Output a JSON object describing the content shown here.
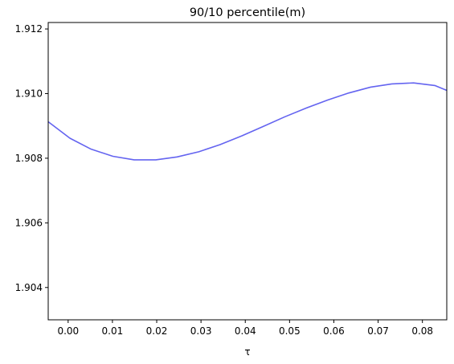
{
  "chart_data": {
    "type": "line",
    "title": "90/10 percentile(m)",
    "xlabel": "τ",
    "ylabel": "",
    "xlim": [
      -0.0045,
      0.0855
    ],
    "ylim": [
      1.903,
      1.9122
    ],
    "x_ticks": [
      0.0,
      0.01,
      0.02,
      0.03,
      0.04,
      0.05,
      0.06,
      0.07,
      0.08
    ],
    "x_tick_labels": [
      "0.00",
      "0.01",
      "0.02",
      "0.03",
      "0.04",
      "0.05",
      "0.06",
      "0.07",
      "0.08"
    ],
    "y_ticks": [
      1.904,
      1.906,
      1.908,
      1.91,
      1.912
    ],
    "y_tick_labels": [
      "1.904",
      "1.906",
      "1.908",
      "1.910",
      "1.912"
    ],
    "grid": false,
    "series": [
      {
        "color": "#6464f0",
        "x": [
          -0.0045,
          0.0004,
          0.0052,
          0.0101,
          0.0149,
          0.0198,
          0.0246,
          0.0295,
          0.0343,
          0.0392,
          0.044,
          0.0489,
          0.0537,
          0.0586,
          0.0634,
          0.0683,
          0.0731,
          0.078,
          0.0828,
          0.0855
        ],
        "y": [
          1.90913,
          1.90862,
          1.90828,
          1.90806,
          1.90795,
          1.90795,
          1.90804,
          1.9082,
          1.90842,
          1.90869,
          1.90898,
          1.90928,
          1.90955,
          1.9098,
          1.91002,
          1.9102,
          1.9103,
          1.91033,
          1.91025,
          1.9101
        ]
      }
    ]
  }
}
